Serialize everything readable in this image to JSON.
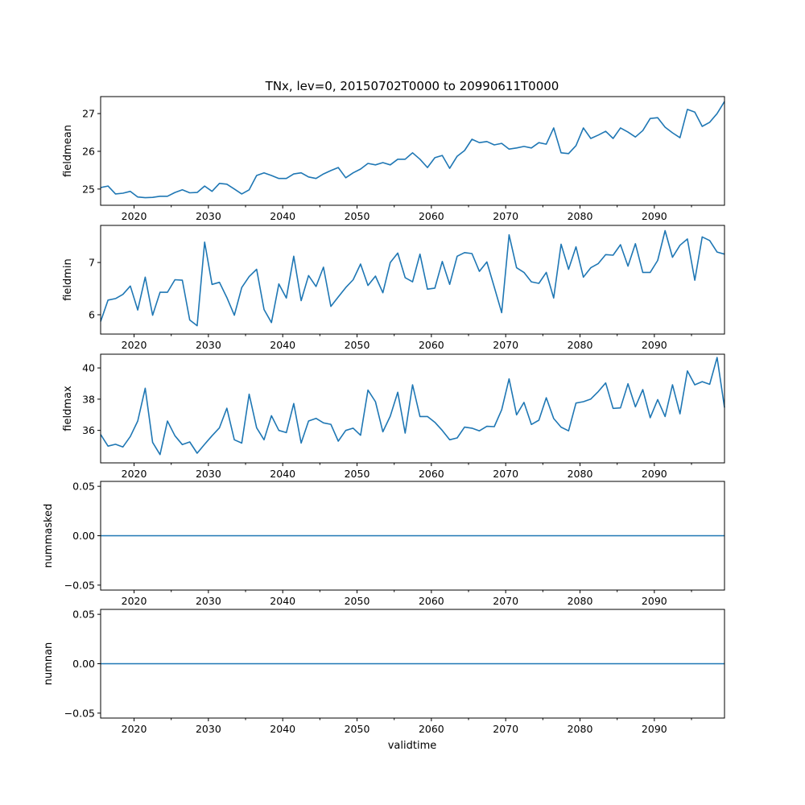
{
  "chart_data": {
    "type": "line",
    "title": "TNx, lev=0, 20150702T0000 to 20990611T0000",
    "xlabel": "validtime",
    "line_color": "#1f77b4",
    "grid": false,
    "x_start": 2015.5,
    "x_step": 0.9993,
    "xlim": [
      2015.5,
      2099.44
    ],
    "x_ticks": [
      2020,
      2030,
      2040,
      2050,
      2060,
      2070,
      2080,
      2090
    ],
    "x_tick_labels": [
      "2020",
      "2030",
      "2040",
      "2050",
      "2060",
      "2070",
      "2080",
      "2090"
    ],
    "x_minor_ticks": [
      2025,
      2035,
      2045,
      2055,
      2065,
      2075,
      2085,
      2095
    ],
    "panels": [
      {
        "ylabel": "fieldmean",
        "ylim": [
          24.57,
          27.45
        ],
        "y_ticks": [
          25,
          26,
          27
        ],
        "y_tick_labels": [
          "25",
          "26",
          "27"
        ],
        "values": [
          25.04,
          25.08,
          24.87,
          24.89,
          24.94,
          24.79,
          24.77,
          24.78,
          24.81,
          24.81,
          24.91,
          24.98,
          24.9,
          24.91,
          25.08,
          24.94,
          25.15,
          25.13,
          25.0,
          24.87,
          24.98,
          25.36,
          25.43,
          25.36,
          25.28,
          25.28,
          25.4,
          25.43,
          25.32,
          25.28,
          25.4,
          25.49,
          25.57,
          25.3,
          25.43,
          25.53,
          25.68,
          25.64,
          25.7,
          25.64,
          25.79,
          25.79,
          25.96,
          25.79,
          25.57,
          25.83,
          25.89,
          25.55,
          25.87,
          26.02,
          26.32,
          26.23,
          26.26,
          26.17,
          26.21,
          26.06,
          26.09,
          26.13,
          26.09,
          26.23,
          26.19,
          26.62,
          25.96,
          25.94,
          26.15,
          26.62,
          26.34,
          26.43,
          26.53,
          26.34,
          26.62,
          26.51,
          26.38,
          26.55,
          26.87,
          26.89,
          26.64,
          26.49,
          26.36,
          27.11,
          27.04,
          26.66,
          26.77,
          27.0,
          27.32
        ]
      },
      {
        "ylabel": "fieldmin",
        "ylim": [
          5.63,
          7.71
        ],
        "y_ticks": [
          6,
          7
        ],
        "y_tick_labels": [
          "6",
          "7"
        ],
        "values": [
          5.87,
          6.28,
          6.31,
          6.39,
          6.55,
          6.09,
          6.72,
          5.99,
          6.43,
          6.43,
          6.67,
          6.66,
          5.9,
          5.79,
          7.39,
          6.58,
          6.62,
          6.33,
          5.99,
          6.52,
          6.73,
          6.87,
          6.1,
          5.85,
          6.59,
          6.32,
          7.12,
          6.27,
          6.75,
          6.54,
          6.91,
          6.16,
          6.34,
          6.52,
          6.67,
          6.97,
          6.56,
          6.74,
          6.42,
          7.0,
          7.18,
          6.71,
          6.63,
          7.16,
          6.49,
          6.51,
          7.02,
          6.58,
          7.12,
          7.19,
          7.17,
          6.83,
          7.01,
          6.53,
          6.04,
          7.53,
          6.9,
          6.81,
          6.63,
          6.6,
          6.81,
          6.32,
          7.35,
          6.87,
          7.3,
          6.72,
          6.9,
          6.98,
          7.15,
          7.14,
          7.34,
          6.93,
          7.36,
          6.81,
          6.81,
          7.04,
          7.61,
          7.1,
          7.33,
          7.45,
          6.66,
          7.49,
          7.42,
          7.2,
          7.16
        ]
      },
      {
        "ylabel": "fieldmax",
        "ylim": [
          33.92,
          40.88
        ],
        "y_ticks": [
          36,
          38,
          40
        ],
        "y_tick_labels": [
          "36",
          "38",
          "40"
        ],
        "values": [
          35.74,
          34.99,
          35.11,
          34.94,
          35.61,
          36.6,
          38.7,
          35.23,
          34.45,
          36.6,
          35.66,
          35.09,
          35.26,
          34.54,
          35.11,
          35.66,
          36.17,
          37.42,
          35.4,
          35.19,
          38.32,
          36.17,
          35.4,
          36.94,
          36.0,
          35.86,
          37.72,
          35.19,
          36.6,
          36.77,
          36.48,
          36.39,
          35.31,
          36.0,
          36.14,
          35.69,
          38.58,
          37.84,
          35.91,
          36.91,
          38.44,
          35.83,
          38.92,
          36.89,
          36.89,
          36.52,
          36.0,
          35.4,
          35.52,
          36.21,
          36.14,
          35.97,
          36.26,
          36.24,
          37.32,
          39.3,
          37.0,
          37.79,
          36.38,
          36.65,
          38.09,
          36.76,
          36.21,
          35.97,
          37.75,
          37.84,
          38.01,
          38.49,
          39.04,
          37.41,
          37.44,
          38.99,
          37.51,
          38.61,
          36.81,
          37.97,
          36.89,
          38.92,
          37.06,
          39.81,
          38.92,
          39.12,
          38.95,
          40.67,
          37.46
        ]
      },
      {
        "ylabel": "nummasked",
        "ylim": [
          -0.055,
          0.055
        ],
        "y_ticks": [
          -0.05,
          0.0,
          0.05
        ],
        "y_tick_labels": [
          "−0.05",
          "0.00",
          "0.05"
        ],
        "constant_value": 0
      },
      {
        "ylabel": "numnan",
        "ylim": [
          -0.055,
          0.055
        ],
        "y_ticks": [
          -0.05,
          0.0,
          0.05
        ],
        "y_tick_labels": [
          "−0.05",
          "0.00",
          "0.05"
        ],
        "constant_value": 0
      }
    ]
  }
}
